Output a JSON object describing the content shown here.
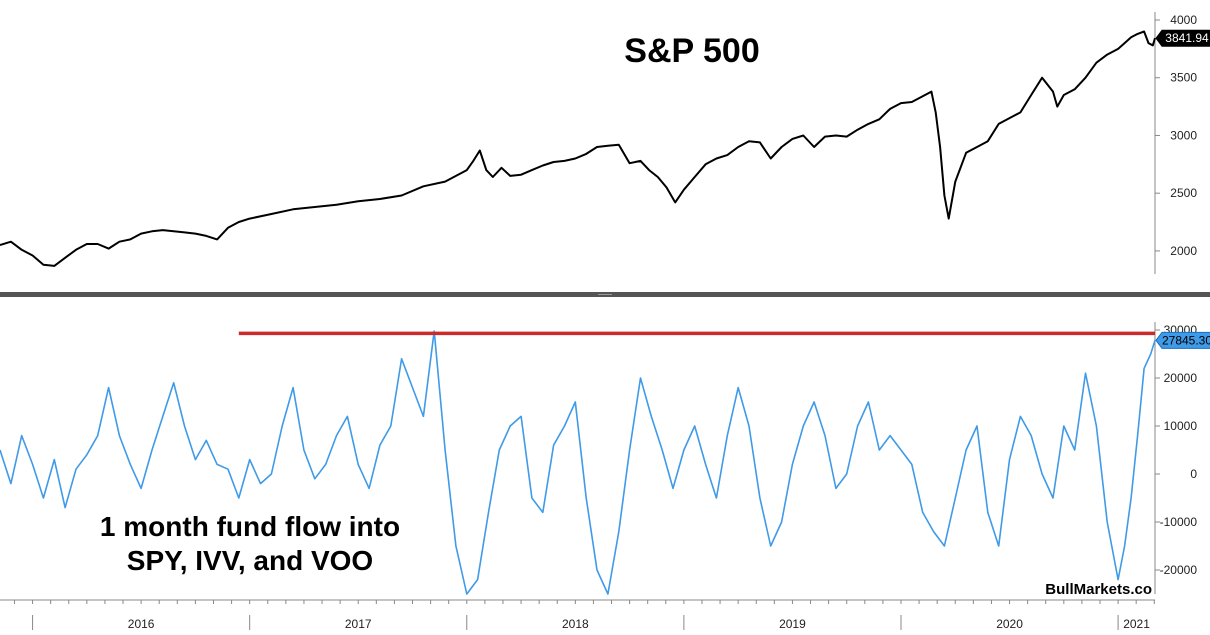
{
  "chart_data": [
    {
      "type": "line",
      "title": "S&P 500",
      "ylim": [
        1800,
        4000
      ],
      "yticks": [
        2000,
        2500,
        3000,
        3500,
        4000
      ],
      "last_value_label": "3841.94",
      "line_color": "#000000",
      "x_range": [
        2015.85,
        2021.17
      ],
      "series": [
        {
          "x": [
            2015.85,
            2015.9,
            2015.95,
            2016.0,
            2016.05,
            2016.1,
            2016.15,
            2016.2,
            2016.25,
            2016.3,
            2016.35,
            2016.4,
            2016.45,
            2016.5,
            2016.55,
            2016.6,
            2016.65,
            2016.7,
            2016.75,
            2016.8,
            2016.85,
            2016.9,
            2016.95,
            2017.0,
            2017.1,
            2017.2,
            2017.3,
            2017.4,
            2017.5,
            2017.6,
            2017.7,
            2017.8,
            2017.9,
            2018.0,
            2018.03,
            2018.06,
            2018.09,
            2018.12,
            2018.16,
            2018.2,
            2018.25,
            2018.3,
            2018.35,
            2018.4,
            2018.45,
            2018.5,
            2018.55,
            2018.6,
            2018.65,
            2018.7,
            2018.75,
            2018.8,
            2018.84,
            2018.88,
            2018.92,
            2018.96,
            2019.0,
            2019.05,
            2019.1,
            2019.15,
            2019.2,
            2019.25,
            2019.3,
            2019.35,
            2019.4,
            2019.45,
            2019.5,
            2019.55,
            2019.6,
            2019.65,
            2019.7,
            2019.75,
            2019.8,
            2019.85,
            2019.9,
            2019.95,
            2020.0,
            2020.05,
            2020.1,
            2020.14,
            2020.16,
            2020.18,
            2020.2,
            2020.22,
            2020.25,
            2020.3,
            2020.35,
            2020.4,
            2020.45,
            2020.5,
            2020.55,
            2020.6,
            2020.65,
            2020.7,
            2020.72,
            2020.75,
            2020.8,
            2020.85,
            2020.9,
            2020.95,
            2021.0,
            2021.03,
            2021.06,
            2021.09,
            2021.12,
            2021.14,
            2021.16,
            2021.17
          ],
          "values": [
            2050,
            2080,
            2010,
            1960,
            1880,
            1870,
            1940,
            2010,
            2060,
            2060,
            2020,
            2080,
            2100,
            2150,
            2170,
            2180,
            2170,
            2160,
            2150,
            2130,
            2100,
            2200,
            2250,
            2280,
            2320,
            2360,
            2380,
            2400,
            2430,
            2450,
            2480,
            2560,
            2600,
            2700,
            2780,
            2870,
            2700,
            2640,
            2720,
            2650,
            2660,
            2700,
            2740,
            2770,
            2780,
            2800,
            2840,
            2900,
            2910,
            2920,
            2760,
            2780,
            2700,
            2640,
            2550,
            2420,
            2530,
            2640,
            2750,
            2800,
            2830,
            2900,
            2950,
            2940,
            2800,
            2900,
            2970,
            3000,
            2900,
            2990,
            3000,
            2990,
            3050,
            3100,
            3140,
            3230,
            3280,
            3290,
            3340,
            3380,
            3200,
            2900,
            2480,
            2280,
            2600,
            2850,
            2900,
            2950,
            3100,
            3150,
            3200,
            3350,
            3500,
            3380,
            3250,
            3350,
            3400,
            3500,
            3630,
            3700,
            3750,
            3800,
            3850,
            3880,
            3900,
            3800,
            3780,
            3841.94
          ]
        }
      ]
    },
    {
      "type": "line",
      "ylabel": "",
      "ylim": [
        -25000,
        30000
      ],
      "yticks": [
        -20000,
        -10000,
        0,
        10000,
        20000,
        30000
      ],
      "last_value_label": "27845.30",
      "line_color": "#3f9ae8",
      "x_range": [
        2015.85,
        2021.17
      ],
      "reference_line": {
        "from_x": 2016.95,
        "to_x": 2021.17,
        "value": 29300,
        "color": "#cc2a2a"
      },
      "series": [
        {
          "x": [
            2015.85,
            2015.9,
            2015.95,
            2016.0,
            2016.05,
            2016.1,
            2016.15,
            2016.2,
            2016.25,
            2016.3,
            2016.35,
            2016.4,
            2016.45,
            2016.5,
            2016.55,
            2016.6,
            2016.65,
            2016.7,
            2016.75,
            2016.8,
            2016.85,
            2016.9,
            2016.95,
            2017.0,
            2017.05,
            2017.1,
            2017.15,
            2017.2,
            2017.25,
            2017.3,
            2017.35,
            2017.4,
            2017.45,
            2017.5,
            2017.55,
            2017.6,
            2017.65,
            2017.7,
            2017.75,
            2017.8,
            2017.85,
            2017.9,
            2017.95,
            2018.0,
            2018.05,
            2018.1,
            2018.15,
            2018.2,
            2018.25,
            2018.3,
            2018.35,
            2018.4,
            2018.45,
            2018.5,
            2018.55,
            2018.6,
            2018.65,
            2018.7,
            2018.75,
            2018.8,
            2018.85,
            2018.9,
            2018.95,
            2019.0,
            2019.05,
            2019.1,
            2019.15,
            2019.2,
            2019.25,
            2019.3,
            2019.35,
            2019.4,
            2019.45,
            2019.5,
            2019.55,
            2019.6,
            2019.65,
            2019.7,
            2019.75,
            2019.8,
            2019.85,
            2019.9,
            2019.95,
            2020.0,
            2020.05,
            2020.1,
            2020.15,
            2020.2,
            2020.25,
            2020.3,
            2020.35,
            2020.4,
            2020.45,
            2020.5,
            2020.55,
            2020.6,
            2020.65,
            2020.7,
            2020.75,
            2020.8,
            2020.85,
            2020.9,
            2020.95,
            2021.0,
            2021.03,
            2021.06,
            2021.09,
            2021.12,
            2021.15,
            2021.17
          ],
          "values": [
            5000,
            -2000,
            8000,
            2000,
            -5000,
            3000,
            -7000,
            1000,
            4000,
            8000,
            18000,
            8000,
            2000,
            -3000,
            5000,
            12000,
            19000,
            10000,
            3000,
            7000,
            2000,
            1000,
            -5000,
            3000,
            -2000,
            0,
            10000,
            18000,
            5000,
            -1000,
            2000,
            8000,
            12000,
            2000,
            -3000,
            6000,
            10000,
            24000,
            18000,
            12000,
            29800,
            5000,
            -15000,
            -25000,
            -22000,
            -8000,
            5000,
            10000,
            12000,
            -5000,
            -8000,
            6000,
            10000,
            15000,
            -5000,
            -20000,
            -25000,
            -12000,
            5000,
            20000,
            12000,
            5000,
            -3000,
            5000,
            10000,
            2000,
            -5000,
            8000,
            18000,
            10000,
            -5000,
            -15000,
            -10000,
            2000,
            10000,
            15000,
            8000,
            -3000,
            0,
            10000,
            15000,
            5000,
            8000,
            5000,
            2000,
            -8000,
            -12000,
            -15000,
            -5000,
            5000,
            10000,
            -8000,
            -15000,
            3000,
            12000,
            8000,
            0,
            -5000,
            10000,
            5000,
            21000,
            10000,
            -10000,
            -22000,
            -15000,
            -5000,
            8000,
            22000,
            25000,
            27845.3
          ]
        }
      ],
      "annotation": [
        "1 month fund flow into",
        "SPY, IVV, and VOO"
      ]
    }
  ],
  "x_axis": {
    "year_labels": [
      "2016",
      "2017",
      "2018",
      "2019",
      "2020",
      "2021"
    ]
  },
  "credit": "BullMarkets.co"
}
